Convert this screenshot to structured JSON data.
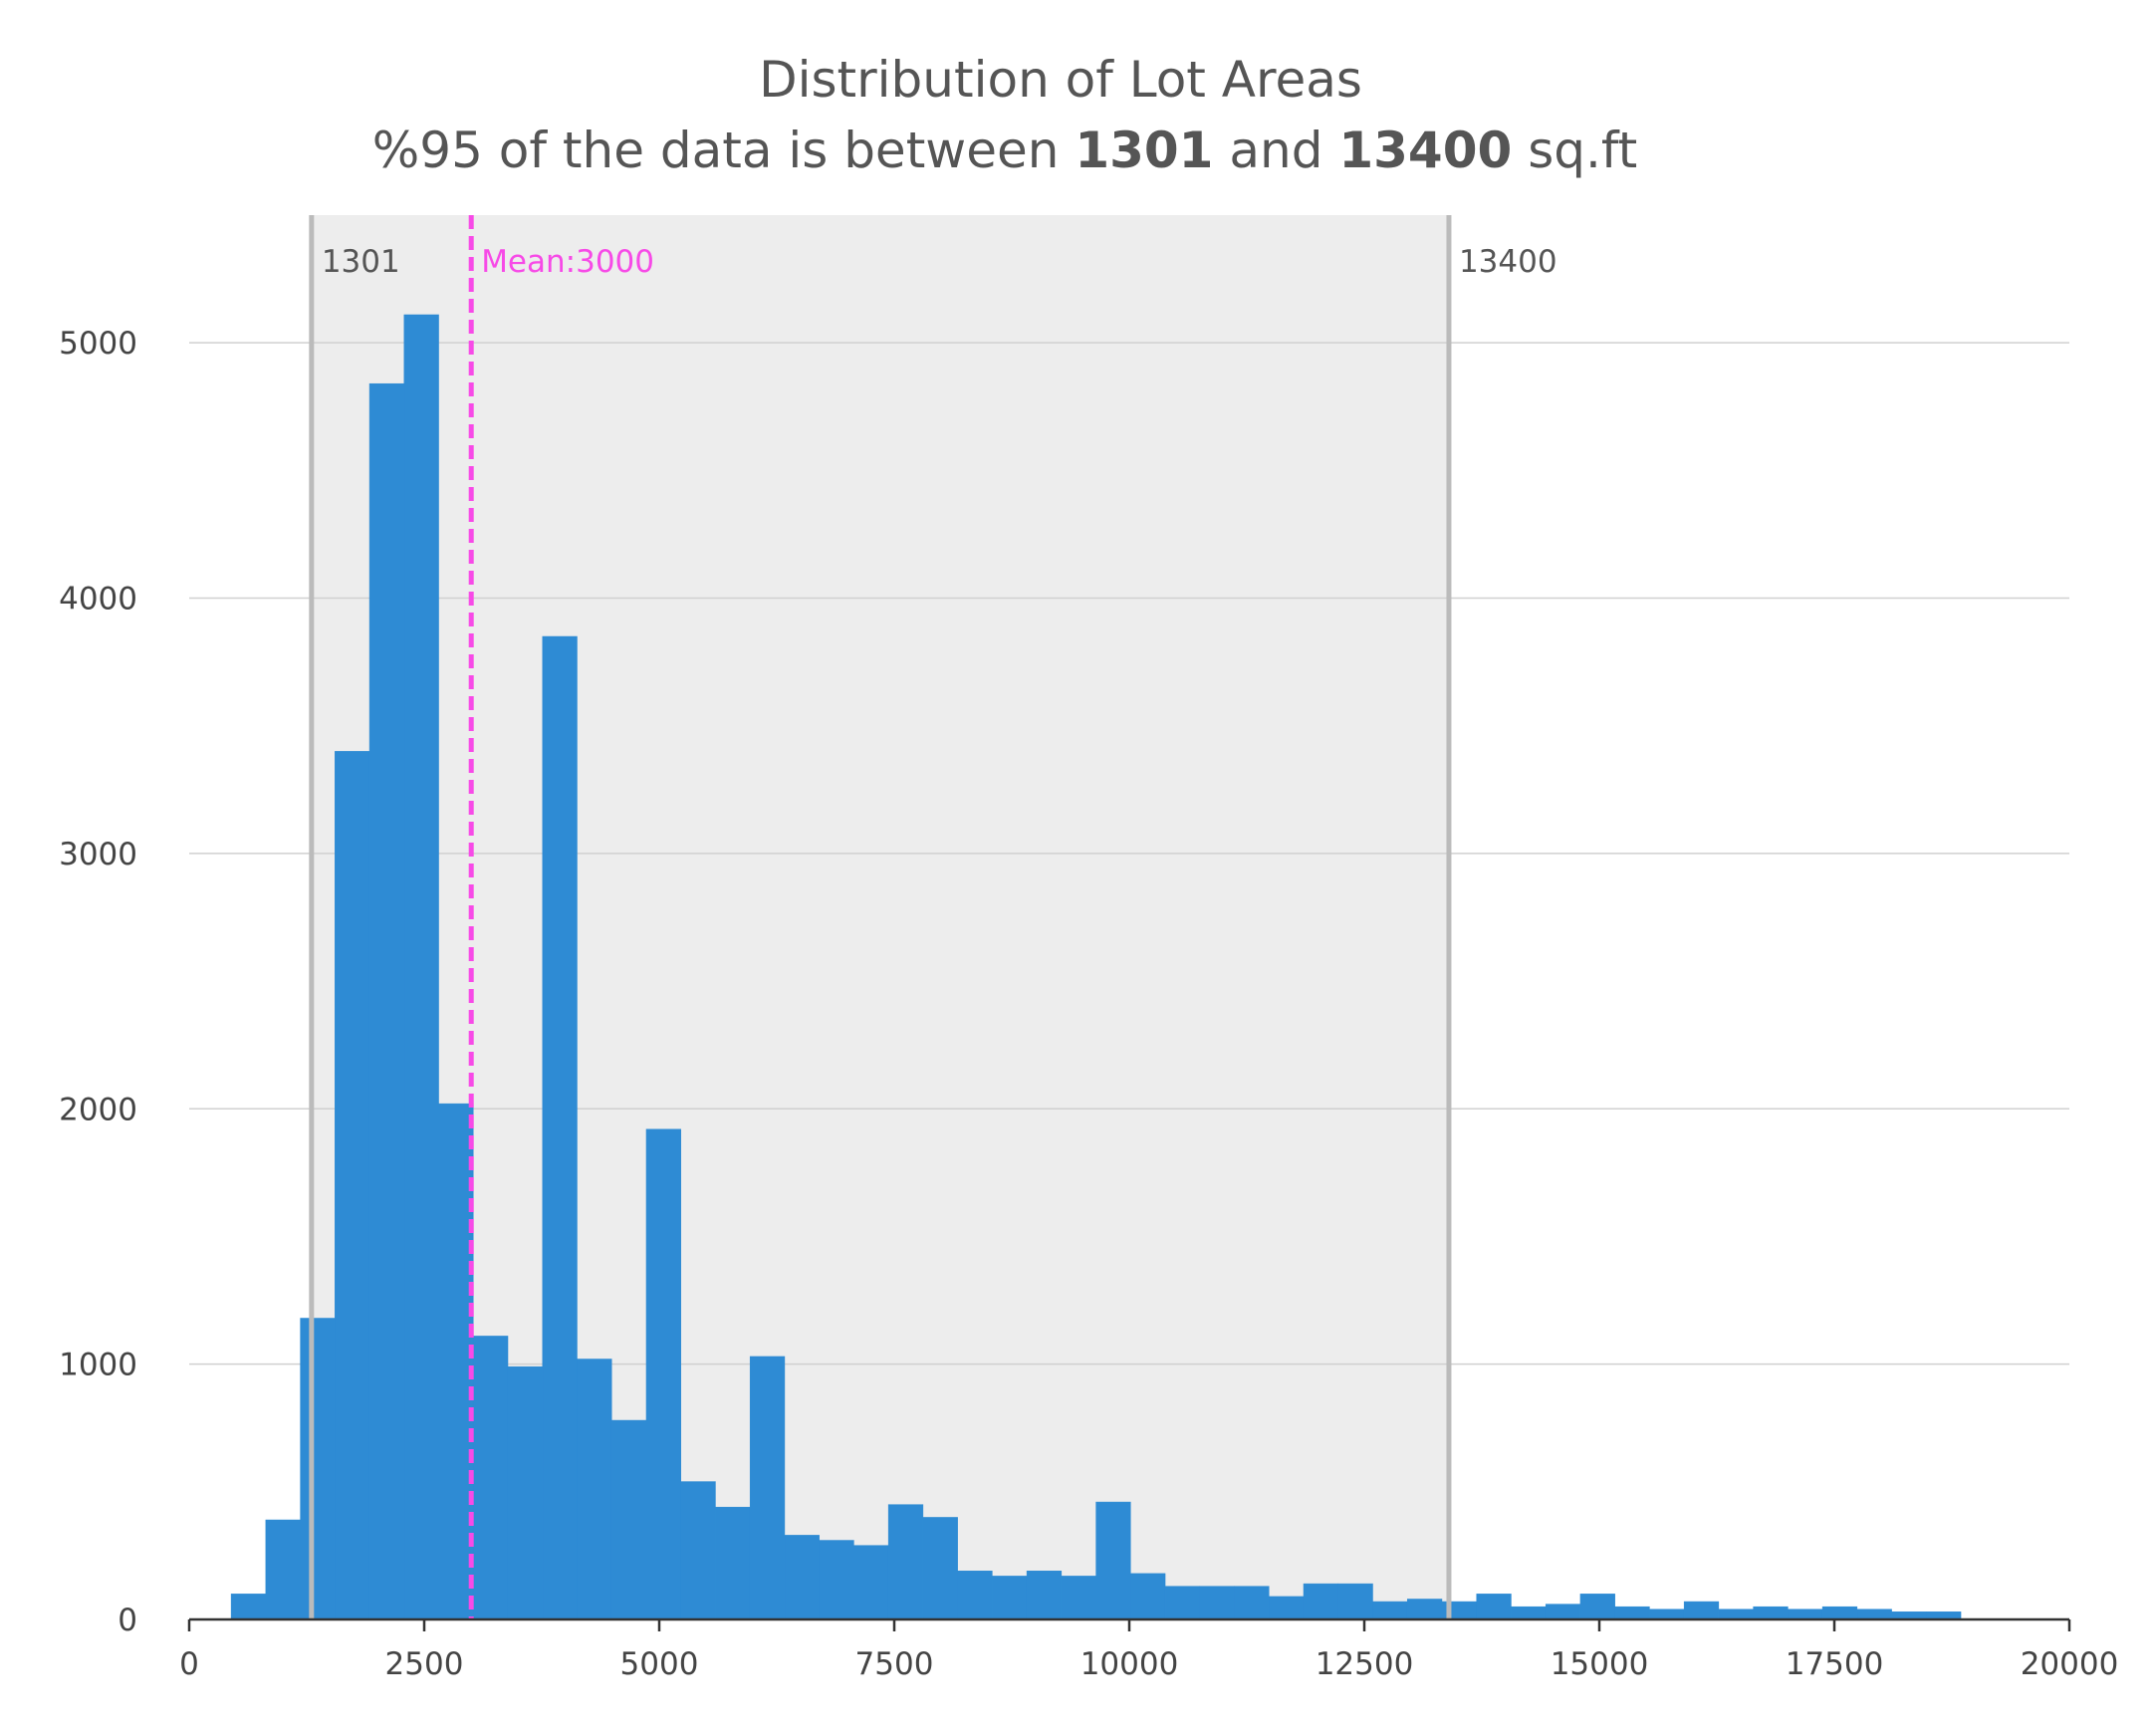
{
  "chart_data": {
    "type": "bar",
    "title": "Distribution of Lot Areas",
    "subtitle": {
      "prefix": "%95 of the data is between ",
      "low": "1301",
      "middle": " and ",
      "high": "13400",
      "suffix": " sq.ft"
    },
    "xlabel": "",
    "ylabel": "",
    "xlim": [
      0,
      20000
    ],
    "ylim": [
      0,
      5500
    ],
    "x_ticks": [
      "0",
      "2500",
      "5000",
      "7500",
      "10000",
      "12500",
      "15000",
      "17500",
      "20000"
    ],
    "y_ticks": [
      "0",
      "1000",
      "2000",
      "3000",
      "4000",
      "5000"
    ],
    "grid": "horizontal",
    "bin_width": 368,
    "bin_starts": [
      446,
      814,
      1182,
      1550,
      1918,
      2286,
      2654,
      3022,
      3390,
      3758,
      4126,
      4494,
      4862,
      5230,
      5598,
      5966,
      6334,
      6702,
      7070,
      7438,
      7806,
      8174,
      8542,
      8910,
      9278,
      9646,
      10014,
      10382,
      10750,
      11118,
      11486,
      11854,
      12222,
      12590,
      12958,
      13326,
      13694,
      14062,
      14430,
      14798,
      15166,
      15534,
      15902,
      16270,
      16638,
      17006,
      17374,
      17742,
      18110,
      18478
    ],
    "values": [
      100,
      390,
      1180,
      3400,
      4840,
      5110,
      2020,
      1110,
      990,
      3850,
      1020,
      780,
      1920,
      540,
      440,
      1030,
      330,
      310,
      290,
      450,
      400,
      190,
      170,
      190,
      170,
      460,
      180,
      130,
      130,
      130,
      90,
      140,
      140,
      70,
      80,
      70,
      100,
      50,
      60,
      100,
      50,
      40,
      70,
      40,
      50,
      40,
      50,
      40,
      30,
      30
    ],
    "bar_color": "#2e8bd4",
    "band": {
      "from": 1301,
      "to": 13400,
      "color": "#ededed"
    },
    "vlines": [
      {
        "x": 1301,
        "label": "1301",
        "color": "#bbbbbb",
        "label_color": "#555555",
        "label_side": "right",
        "style": "solid"
      },
      {
        "x": 3000,
        "label": "Mean:3000",
        "color": "#f74ae7",
        "label_color": "#f74ae7",
        "label_side": "right",
        "style": "dashed"
      },
      {
        "x": 13400,
        "label": "13400",
        "color": "#bbbbbb",
        "label_color": "#555555",
        "label_side": "right",
        "style": "solid"
      }
    ]
  }
}
